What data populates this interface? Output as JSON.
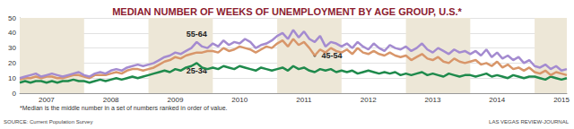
{
  "chart_data": {
    "type": "line",
    "title": "MEDIAN NUMBER OF WEEKS OF UNEMPLOYMENT BY AGE GROUP, U.S.*",
    "annotations": [
      "*Median is the middle number in a set of numbers ranked in order of value.",
      "SOURCE: Current Population Survey",
      "LAS VEGAS REVIEW-JOURNAL"
    ],
    "categories": [
      null,
      null,
      null,
      null,
      null,
      "2007",
      null,
      null,
      null,
      null,
      null,
      null,
      null,
      null,
      null,
      null,
      null,
      "2008",
      null,
      null,
      null,
      null,
      null,
      null,
      null,
      null,
      null,
      null,
      null,
      "2009",
      null,
      null,
      null,
      null,
      null,
      null,
      null,
      null,
      null,
      null,
      null,
      "2010",
      null,
      null,
      null,
      null,
      null,
      null,
      null,
      null,
      null,
      null,
      null,
      "2011",
      null,
      null,
      null,
      null,
      null,
      null,
      null,
      null,
      null,
      null,
      null,
      "2012",
      null,
      null,
      null,
      null,
      null,
      null,
      null,
      null,
      null,
      null,
      null,
      "2013",
      null,
      null,
      null,
      null,
      null,
      null,
      null,
      null,
      null,
      null,
      null,
      "2014",
      null,
      null,
      null,
      null,
      null,
      null,
      null,
      null,
      null,
      null,
      null,
      "2015",
      null
    ],
    "series": [
      {
        "name": "55-64",
        "color": "#a48bd0",
        "values": [
          10,
          11,
          12,
          13,
          11,
          12,
          13,
          12,
          11,
          12,
          13,
          14,
          12,
          11,
          13,
          14,
          13,
          15,
          16,
          15,
          17,
          18,
          19,
          18,
          19,
          20,
          22,
          24,
          25,
          27,
          26,
          28,
          30,
          34,
          31,
          30,
          33,
          31,
          35,
          32,
          34,
          33,
          36,
          34,
          30,
          32,
          33,
          35,
          38,
          40,
          36,
          42,
          37,
          41,
          36,
          34,
          38,
          31,
          34,
          33,
          31,
          33,
          30,
          34,
          31,
          29,
          33,
          30,
          28,
          32,
          30,
          29,
          31,
          28,
          30,
          33,
          29,
          27,
          30,
          28,
          26,
          29,
          27,
          28,
          26,
          28,
          25,
          29,
          24,
          27,
          23,
          25,
          22,
          24,
          20,
          22,
          18,
          17,
          19,
          16,
          18,
          15,
          16
        ]
      },
      {
        "name": "45-54",
        "color": "#d8966a",
        "values": [
          9,
          10,
          10,
          11,
          10,
          11,
          11,
          10,
          10,
          11,
          12,
          12,
          11,
          10,
          12,
          12,
          12,
          13,
          14,
          13,
          15,
          16,
          16,
          15,
          16,
          17,
          19,
          21,
          22,
          24,
          23,
          25,
          26,
          27,
          27,
          28,
          28,
          27,
          30,
          28,
          29,
          31,
          30,
          29,
          27,
          29,
          31,
          30,
          33,
          35,
          31,
          36,
          32,
          34,
          30,
          25,
          29,
          27,
          30,
          28,
          27,
          29,
          26,
          30,
          27,
          26,
          28,
          26,
          25,
          27,
          25,
          24,
          25,
          22,
          24,
          26,
          23,
          22,
          24,
          21,
          20,
          23,
          21,
          20,
          21,
          22,
          19,
          20,
          18,
          21,
          17,
          19,
          16,
          17,
          15,
          17,
          14,
          13,
          15,
          12,
          14,
          13,
          12
        ]
      },
      {
        "name": "25-34",
        "color": "#1f8a4c",
        "values": [
          7,
          8,
          7,
          8,
          8,
          7,
          8,
          7,
          8,
          8,
          9,
          8,
          8,
          7,
          8,
          9,
          8,
          9,
          10,
          9,
          10,
          11,
          10,
          11,
          12,
          13,
          14,
          15,
          14,
          16,
          15,
          17,
          18,
          20,
          17,
          16,
          17,
          16,
          18,
          17,
          16,
          18,
          17,
          16,
          15,
          17,
          16,
          15,
          16,
          17,
          15,
          18,
          16,
          17,
          15,
          14,
          16,
          15,
          16,
          14,
          15,
          14,
          15,
          13,
          14,
          15,
          14,
          13,
          14,
          13,
          14,
          12,
          13,
          12,
          13,
          14,
          12,
          13,
          12,
          11,
          13,
          12,
          11,
          12,
          12,
          11,
          12,
          13,
          11,
          12,
          11,
          10,
          12,
          11,
          10,
          11,
          11,
          10,
          9,
          11,
          10,
          9,
          10
        ]
      }
    ],
    "ylim": [
      0,
      50
    ],
    "yticks": [
      0,
      10,
      20,
      30,
      40,
      50
    ],
    "grid": true
  }
}
